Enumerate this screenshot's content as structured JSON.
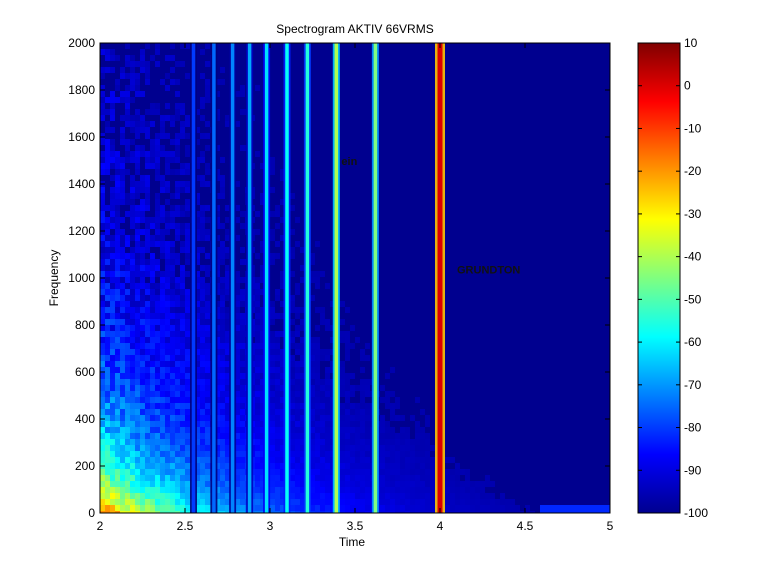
{
  "chart_data": {
    "type": "heatmap",
    "title": "Spectrogram AKTIV 66VRMS",
    "xlabel": "Time",
    "ylabel": "Frequency",
    "xlim": [
      2,
      5
    ],
    "ylim": [
      0,
      2000
    ],
    "x_ticks": [
      2,
      2.5,
      3,
      3.5,
      4,
      4.5,
      5
    ],
    "x_tick_labels": [
      "2",
      "2.5",
      "3",
      "3.5",
      "4",
      "4.5",
      "5"
    ],
    "y_ticks": [
      0,
      200,
      400,
      600,
      800,
      1000,
      1200,
      1400,
      1600,
      1800,
      2000
    ],
    "y_tick_labels": [
      "0",
      "200",
      "400",
      "600",
      "800",
      "1000",
      "1200",
      "1400",
      "1600",
      "1800",
      "2000"
    ],
    "colorbar": {
      "colormap": "jet",
      "range": [
        -100,
        10
      ],
      "ticks": [
        10,
        0,
        -10,
        -20,
        -30,
        -40,
        -50,
        -60,
        -70,
        -80,
        -90,
        -100
      ],
      "tick_labels": [
        "10",
        "0",
        "-10",
        "-20",
        "-30",
        "-40",
        "-50",
        "-60",
        "-70",
        "-80",
        "-90",
        "-100"
      ]
    },
    "background_level_db": -95,
    "tonal_lines": [
      {
        "time": 2.55,
        "level_db": -80
      },
      {
        "time": 2.67,
        "level_db": -75
      },
      {
        "time": 2.78,
        "level_db": -72
      },
      {
        "time": 2.88,
        "level_db": -68
      },
      {
        "time": 2.98,
        "level_db": -62
      },
      {
        "time": 3.1,
        "level_db": -58
      },
      {
        "time": 3.22,
        "level_db": -55
      },
      {
        "time": 3.39,
        "level_db": -40
      },
      {
        "time": 3.62,
        "level_db": -45
      },
      {
        "time": 4.0,
        "level_db": 0
      }
    ],
    "annotations": [
      {
        "text": "ein",
        "time": 3.42,
        "freq": 1480
      },
      {
        "text": "GRUNDTON",
        "time": 4.1,
        "freq": 1020
      }
    ]
  }
}
